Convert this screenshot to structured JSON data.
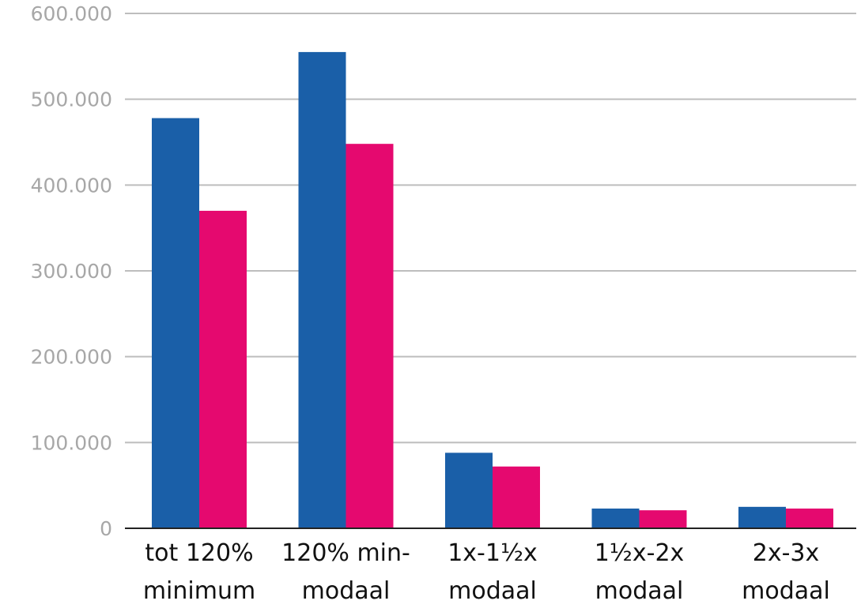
{
  "chart_data": {
    "type": "bar",
    "title": "",
    "xlabel": "",
    "ylabel": "",
    "categories": [
      [
        "tot 120%",
        "minimum"
      ],
      [
        "120% min-",
        "modaal"
      ],
      [
        "1x-1½x",
        "modaal"
      ],
      [
        "1½x-2x",
        "modaal"
      ],
      [
        "2x-3x",
        "modaal"
      ]
    ],
    "series": [
      {
        "color": "#1a5fa8",
        "values": [
          478000,
          555000,
          88000,
          23000,
          25000
        ]
      },
      {
        "color": "#e5096f",
        "values": [
          370000,
          448000,
          72000,
          21000,
          23000
        ]
      }
    ],
    "ylim": [
      0,
      600000
    ],
    "yticks": [
      {
        "value": 0,
        "label": "0"
      },
      {
        "value": 100000,
        "label": "100.000"
      },
      {
        "value": 200000,
        "label": "200.000"
      },
      {
        "value": 300000,
        "label": "300.000"
      },
      {
        "value": 400000,
        "label": "400.000"
      },
      {
        "value": 500000,
        "label": "500.000"
      },
      {
        "value": 600000,
        "label": "600.000"
      }
    ],
    "grid": true,
    "legend": "none"
  }
}
